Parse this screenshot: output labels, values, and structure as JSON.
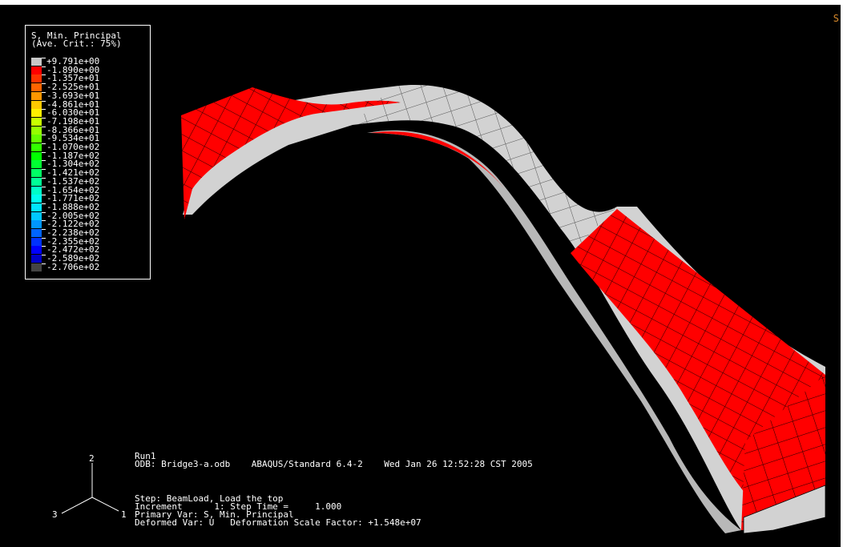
{
  "viewport": {
    "corner_text": "S",
    "background": "#000000"
  },
  "legend": {
    "title_line1": "S, Min. Principal",
    "title_line2": "(Ave. Crit.: 75%)",
    "entries": [
      {
        "label": "+9.791e+00",
        "color": "#c8c8c8"
      },
      {
        "label": "-1.890e+00",
        "color": "#ff0000"
      },
      {
        "label": "-1.357e+01",
        "color": "#ff3200"
      },
      {
        "label": "-2.525e+01",
        "color": "#ff6400"
      },
      {
        "label": "-3.693e+01",
        "color": "#ff9600"
      },
      {
        "label": "-4.861e+01",
        "color": "#ffc800"
      },
      {
        "label": "-6.030e+01",
        "color": "#fff000"
      },
      {
        "label": "-7.198e+01",
        "color": "#c8ff00"
      },
      {
        "label": "-8.366e+01",
        "color": "#96ff00"
      },
      {
        "label": "-9.534e+01",
        "color": "#64ff00"
      },
      {
        "label": "-1.070e+02",
        "color": "#32ff00"
      },
      {
        "label": "-1.187e+02",
        "color": "#00ff00"
      },
      {
        "label": "-1.304e+02",
        "color": "#00ff32"
      },
      {
        "label": "-1.421e+02",
        "color": "#00ff64"
      },
      {
        "label": "-1.537e+02",
        "color": "#00ff96"
      },
      {
        "label": "-1.654e+02",
        "color": "#00ffc8"
      },
      {
        "label": "-1.771e+02",
        "color": "#00fff0"
      },
      {
        "label": "-1.888e+02",
        "color": "#00e6ff"
      },
      {
        "label": "-2.005e+02",
        "color": "#00c8ff"
      },
      {
        "label": "-2.122e+02",
        "color": "#0096ff"
      },
      {
        "label": "-2.238e+02",
        "color": "#0064ff"
      },
      {
        "label": "-2.355e+02",
        "color": "#0032ff"
      },
      {
        "label": "-2.472e+02",
        "color": "#0000ff"
      },
      {
        "label": "-2.589e+02",
        "color": "#0000c8"
      },
      {
        "label": "-2.706e+02",
        "color": "#444444"
      }
    ]
  },
  "model": {
    "tension_color": "#d2d2d2",
    "compression_color": "#ff0000",
    "mesh_color": "#000000"
  },
  "info": {
    "run": "Run1",
    "odb_line": "ODB: Bridge3-a.odb    ABAQUS/Standard 6.4-2    Wed Jan 26 12:52:28 CST 2005",
    "step_line": "Step: BeamLoad, Load the top",
    "increment_line": "Increment      1: Step Time =     1.000",
    "primary_line": "Primary Var: S, Min. Principal",
    "deformed_line": "Deformed Var: U   Deformation Scale Factor: +1.548e+07"
  },
  "triad": {
    "axis_2": "2",
    "axis_3": "3",
    "axis_1": "1"
  }
}
